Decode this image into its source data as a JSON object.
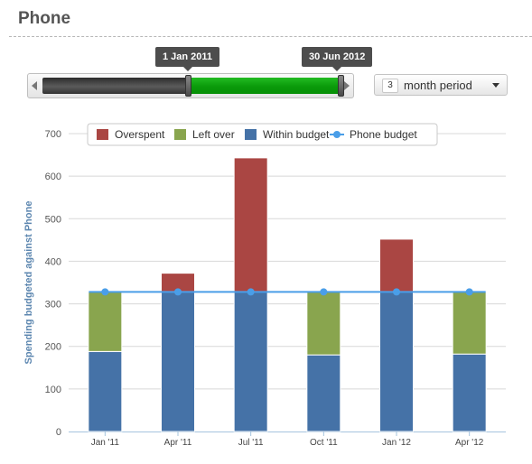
{
  "page": {
    "title": "Phone"
  },
  "range_selector": {
    "start_label": "1 Jan 2011",
    "end_label": "30 Jun 2012"
  },
  "period": {
    "value": "3",
    "label": "month period"
  },
  "chart_data": {
    "type": "bar",
    "stacked": true,
    "categories": [
      "Jan '11",
      "Apr '11",
      "Jul '11",
      "Oct '11",
      "Jan '12",
      "Apr '12"
    ],
    "series": [
      {
        "name": "Within budget",
        "color": "#4572a7",
        "values": [
          188,
          328,
          328,
          180,
          328,
          182
        ]
      },
      {
        "name": "Left over",
        "color": "#89a54e",
        "values": [
          140,
          0,
          0,
          148,
          0,
          146
        ]
      },
      {
        "name": "Overspent",
        "color": "#aa4643",
        "values": [
          0,
          44,
          315,
          0,
          124,
          0
        ]
      }
    ],
    "line_series": {
      "name": "Phone budget",
      "color": "#4a9ee8",
      "values": [
        328,
        328,
        328,
        328,
        328,
        328
      ]
    },
    "legend": [
      "Overspent",
      "Left over",
      "Within budget",
      "Phone budget"
    ],
    "ylabel": "Spending budgeted against Phone",
    "ylim": [
      0,
      700
    ],
    "yticks": [
      0,
      100,
      200,
      300,
      400,
      500,
      600,
      700
    ],
    "grid": true,
    "legend_position": "top-center"
  }
}
